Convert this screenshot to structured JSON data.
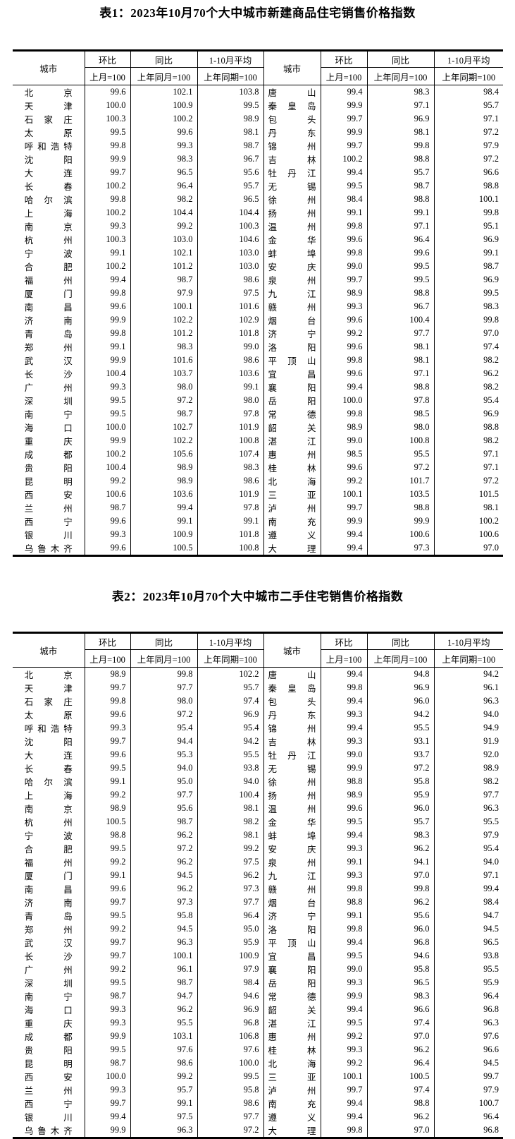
{
  "tables": [
    {
      "title": "表1：2023年10月70个大中城市新建商品住宅销售价格指数",
      "header": {
        "city": "城市",
        "mom": "环比",
        "yoy": "同比",
        "avg": "1-10月平均",
        "mom_base": "上月=100",
        "yoy_base": "上年同月=100",
        "avg_base": "上年同期=100"
      },
      "rows_left": [
        [
          "北京",
          "99.6",
          "102.1",
          "103.8"
        ],
        [
          "天津",
          "100.0",
          "100.9",
          "99.5"
        ],
        [
          "石家庄",
          "100.3",
          "100.2",
          "98.9"
        ],
        [
          "太原",
          "99.5",
          "99.6",
          "98.1"
        ],
        [
          "呼和浩特",
          "99.8",
          "99.3",
          "98.7"
        ],
        [
          "沈阳",
          "99.9",
          "98.3",
          "96.7"
        ],
        [
          "大连",
          "99.7",
          "96.5",
          "95.6"
        ],
        [
          "长春",
          "100.2",
          "96.4",
          "95.7"
        ],
        [
          "哈尔滨",
          "99.8",
          "98.2",
          "96.5"
        ],
        [
          "上海",
          "100.2",
          "104.4",
          "104.4"
        ],
        [
          "南京",
          "99.3",
          "99.2",
          "100.3"
        ],
        [
          "杭州",
          "100.3",
          "103.0",
          "104.6"
        ],
        [
          "宁波",
          "99.1",
          "102.1",
          "103.0"
        ],
        [
          "合肥",
          "100.2",
          "101.2",
          "103.0"
        ],
        [
          "福州",
          "99.4",
          "98.7",
          "98.6"
        ],
        [
          "厦门",
          "99.8",
          "97.9",
          "97.5"
        ],
        [
          "南昌",
          "99.6",
          "100.1",
          "101.6"
        ],
        [
          "济南",
          "99.9",
          "102.2",
          "102.9"
        ],
        [
          "青岛",
          "99.8",
          "101.2",
          "101.8"
        ],
        [
          "郑州",
          "99.1",
          "98.3",
          "99.0"
        ],
        [
          "武汉",
          "99.9",
          "101.6",
          "98.6"
        ],
        [
          "长沙",
          "100.4",
          "103.7",
          "103.6"
        ],
        [
          "广州",
          "99.3",
          "98.0",
          "99.1"
        ],
        [
          "深圳",
          "99.5",
          "97.2",
          "98.0"
        ],
        [
          "南宁",
          "99.5",
          "98.7",
          "97.8"
        ],
        [
          "海口",
          "100.0",
          "102.7",
          "101.9"
        ],
        [
          "重庆",
          "99.9",
          "102.2",
          "100.8"
        ],
        [
          "成都",
          "100.2",
          "105.6",
          "107.4"
        ],
        [
          "贵阳",
          "100.4",
          "98.9",
          "98.3"
        ],
        [
          "昆明",
          "99.2",
          "98.9",
          "98.6"
        ],
        [
          "西安",
          "100.6",
          "103.6",
          "101.9"
        ],
        [
          "兰州",
          "98.7",
          "99.4",
          "97.8"
        ],
        [
          "西宁",
          "99.6",
          "99.1",
          "99.1"
        ],
        [
          "银川",
          "99.3",
          "100.9",
          "101.8"
        ],
        [
          "乌鲁木齐",
          "99.6",
          "100.5",
          "100.8"
        ]
      ],
      "rows_right": [
        [
          "唐山",
          "99.4",
          "98.3",
          "98.4"
        ],
        [
          "秦皇岛",
          "99.9",
          "97.1",
          "95.7"
        ],
        [
          "包头",
          "99.7",
          "96.9",
          "97.1"
        ],
        [
          "丹东",
          "99.9",
          "98.1",
          "97.2"
        ],
        [
          "锦州",
          "99.7",
          "99.8",
          "97.9"
        ],
        [
          "吉林",
          "100.2",
          "98.8",
          "97.2"
        ],
        [
          "牡丹江",
          "99.4",
          "95.7",
          "96.6"
        ],
        [
          "无锡",
          "99.5",
          "98.7",
          "98.8"
        ],
        [
          "徐州",
          "98.4",
          "98.8",
          "100.1"
        ],
        [
          "扬州",
          "99.1",
          "99.1",
          "99.8"
        ],
        [
          "温州",
          "99.8",
          "97.1",
          "95.1"
        ],
        [
          "金华",
          "99.6",
          "96.4",
          "96.9"
        ],
        [
          "蚌埠",
          "99.8",
          "99.6",
          "99.1"
        ],
        [
          "安庆",
          "99.0",
          "99.5",
          "98.7"
        ],
        [
          "泉州",
          "99.7",
          "99.5",
          "96.9"
        ],
        [
          "九江",
          "98.9",
          "98.8",
          "99.5"
        ],
        [
          "赣州",
          "99.3",
          "96.7",
          "98.3"
        ],
        [
          "烟台",
          "99.6",
          "100.4",
          "99.8"
        ],
        [
          "济宁",
          "99.2",
          "97.7",
          "97.0"
        ],
        [
          "洛阳",
          "99.6",
          "98.1",
          "97.4"
        ],
        [
          "平顶山",
          "99.8",
          "98.1",
          "98.2"
        ],
        [
          "宜昌",
          "99.6",
          "97.1",
          "96.2"
        ],
        [
          "襄阳",
          "99.4",
          "98.8",
          "98.2"
        ],
        [
          "岳阳",
          "100.0",
          "97.8",
          "95.4"
        ],
        [
          "常德",
          "99.8",
          "98.5",
          "96.9"
        ],
        [
          "韶关",
          "98.9",
          "98.0",
          "98.8"
        ],
        [
          "湛江",
          "99.0",
          "100.8",
          "98.2"
        ],
        [
          "惠州",
          "98.5",
          "95.5",
          "97.1"
        ],
        [
          "桂林",
          "99.6",
          "97.2",
          "97.1"
        ],
        [
          "北海",
          "99.2",
          "101.7",
          "97.2"
        ],
        [
          "三亚",
          "100.1",
          "103.5",
          "101.5"
        ],
        [
          "泸州",
          "99.7",
          "98.8",
          "98.1"
        ],
        [
          "南充",
          "99.9",
          "99.9",
          "100.2"
        ],
        [
          "遵义",
          "99.4",
          "100.6",
          "100.6"
        ],
        [
          "大理",
          "99.4",
          "97.3",
          "97.0"
        ]
      ]
    },
    {
      "title": "表2：2023年10月70个大中城市二手住宅销售价格指数",
      "header": {
        "city": "城市",
        "mom": "环比",
        "yoy": "同比",
        "avg": "1-10月平均",
        "mom_base": "上月=100",
        "yoy_base": "上年同月=100",
        "avg_base": "上年同期=100"
      },
      "rows_left": [
        [
          "北京",
          "98.9",
          "99.8",
          "102.2"
        ],
        [
          "天津",
          "99.7",
          "97.7",
          "95.7"
        ],
        [
          "石家庄",
          "99.8",
          "98.0",
          "97.4"
        ],
        [
          "太原",
          "99.6",
          "97.2",
          "96.9"
        ],
        [
          "呼和浩特",
          "99.3",
          "95.4",
          "95.4"
        ],
        [
          "沈阳",
          "99.7",
          "94.4",
          "94.2"
        ],
        [
          "大连",
          "99.6",
          "95.3",
          "95.5"
        ],
        [
          "长春",
          "99.5",
          "94.0",
          "93.8"
        ],
        [
          "哈尔滨",
          "99.1",
          "95.0",
          "94.0"
        ],
        [
          "上海",
          "99.2",
          "97.7",
          "100.4"
        ],
        [
          "南京",
          "98.9",
          "95.6",
          "98.1"
        ],
        [
          "杭州",
          "100.5",
          "98.7",
          "98.2"
        ],
        [
          "宁波",
          "98.8",
          "96.2",
          "98.1"
        ],
        [
          "合肥",
          "99.5",
          "97.2",
          "99.2"
        ],
        [
          "福州",
          "99.2",
          "96.2",
          "97.5"
        ],
        [
          "厦门",
          "99.1",
          "94.5",
          "96.2"
        ],
        [
          "南昌",
          "99.6",
          "96.2",
          "97.3"
        ],
        [
          "济南",
          "99.7",
          "97.3",
          "97.7"
        ],
        [
          "青岛",
          "99.5",
          "95.8",
          "96.4"
        ],
        [
          "郑州",
          "99.2",
          "94.5",
          "95.0"
        ],
        [
          "武汉",
          "99.7",
          "96.3",
          "95.9"
        ],
        [
          "长沙",
          "99.7",
          "100.1",
          "100.9"
        ],
        [
          "广州",
          "99.2",
          "96.1",
          "97.9"
        ],
        [
          "深圳",
          "99.5",
          "98.7",
          "98.4"
        ],
        [
          "南宁",
          "98.7",
          "94.7",
          "94.6"
        ],
        [
          "海口",
          "99.3",
          "96.2",
          "96.9"
        ],
        [
          "重庆",
          "99.3",
          "95.5",
          "96.8"
        ],
        [
          "成都",
          "99.9",
          "103.1",
          "106.8"
        ],
        [
          "贵阳",
          "99.5",
          "97.6",
          "97.6"
        ],
        [
          "昆明",
          "98.7",
          "98.6",
          "100.0"
        ],
        [
          "西安",
          "100.0",
          "99.2",
          "99.5"
        ],
        [
          "兰州",
          "99.3",
          "95.7",
          "95.8"
        ],
        [
          "西宁",
          "99.7",
          "99.1",
          "98.6"
        ],
        [
          "银川",
          "99.4",
          "97.5",
          "97.7"
        ],
        [
          "乌鲁木齐",
          "99.9",
          "96.3",
          "97.2"
        ]
      ],
      "rows_right": [
        [
          "唐山",
          "99.4",
          "94.8",
          "94.2"
        ],
        [
          "秦皇岛",
          "99.8",
          "96.9",
          "96.1"
        ],
        [
          "包头",
          "99.4",
          "96.0",
          "96.3"
        ],
        [
          "丹东",
          "99.3",
          "94.2",
          "94.0"
        ],
        [
          "锦州",
          "99.4",
          "95.5",
          "94.9"
        ],
        [
          "吉林",
          "99.3",
          "93.1",
          "91.9"
        ],
        [
          "牡丹江",
          "99.0",
          "93.7",
          "92.0"
        ],
        [
          "无锡",
          "99.9",
          "97.2",
          "98.9"
        ],
        [
          "徐州",
          "98.8",
          "95.8",
          "98.2"
        ],
        [
          "扬州",
          "98.9",
          "95.9",
          "97.7"
        ],
        [
          "温州",
          "99.6",
          "96.0",
          "96.3"
        ],
        [
          "金华",
          "99.5",
          "95.7",
          "95.5"
        ],
        [
          "蚌埠",
          "99.4",
          "98.3",
          "97.9"
        ],
        [
          "安庆",
          "99.3",
          "96.2",
          "95.4"
        ],
        [
          "泉州",
          "99.1",
          "94.1",
          "94.0"
        ],
        [
          "九江",
          "99.3",
          "97.0",
          "97.1"
        ],
        [
          "赣州",
          "99.8",
          "99.8",
          "99.4"
        ],
        [
          "烟台",
          "98.8",
          "96.2",
          "98.4"
        ],
        [
          "济宁",
          "99.1",
          "95.6",
          "94.7"
        ],
        [
          "洛阳",
          "99.8",
          "96.0",
          "94.5"
        ],
        [
          "平顶山",
          "99.4",
          "96.8",
          "96.5"
        ],
        [
          "宜昌",
          "99.5",
          "94.6",
          "93.8"
        ],
        [
          "襄阳",
          "99.0",
          "95.8",
          "95.5"
        ],
        [
          "岳阳",
          "99.3",
          "96.5",
          "95.9"
        ],
        [
          "常德",
          "99.9",
          "98.3",
          "96.4"
        ],
        [
          "韶关",
          "99.4",
          "96.6",
          "96.8"
        ],
        [
          "湛江",
          "99.5",
          "97.4",
          "96.3"
        ],
        [
          "惠州",
          "99.2",
          "97.0",
          "97.6"
        ],
        [
          "桂林",
          "99.3",
          "96.2",
          "96.6"
        ],
        [
          "北海",
          "99.2",
          "96.4",
          "94.5"
        ],
        [
          "三亚",
          "100.1",
          "100.5",
          "99.7"
        ],
        [
          "泸州",
          "99.7",
          "97.4",
          "97.9"
        ],
        [
          "南充",
          "99.4",
          "98.8",
          "100.7"
        ],
        [
          "遵义",
          "99.4",
          "96.2",
          "96.4"
        ],
        [
          "大理",
          "99.8",
          "97.0",
          "96.8"
        ]
      ]
    }
  ]
}
